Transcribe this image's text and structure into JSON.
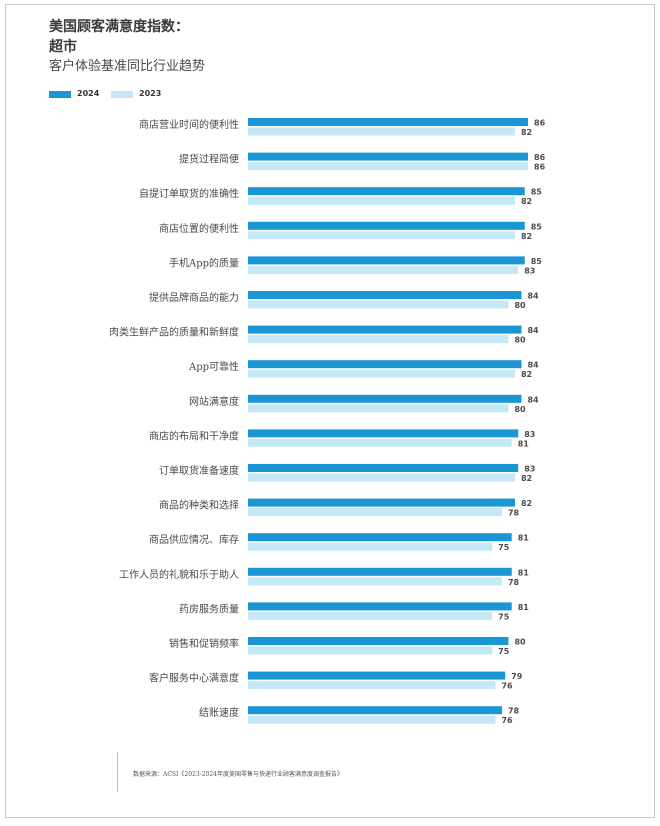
{
  "header": {
    "title_line1": "美国顾客满意度指数：",
    "title_line2": "超市",
    "subtitle": "客户体验基准同比行业趋势"
  },
  "legend": [
    {
      "label": "2024",
      "color": "#1a96d4"
    },
    {
      "label": "2023",
      "color": "#c5e8f6"
    }
  ],
  "chart_data": {
    "type": "bar",
    "orientation": "horizontal",
    "categories": [
      "商店营业时间的便利性",
      "提货过程简便",
      "自提订单取货的准确性",
      "商店位置的便利性",
      "手机App的质量",
      "提供品牌商品的能力",
      "肉类生鲜产品的质量和新鲜度",
      "App可靠性",
      "网站满意度",
      "商店的布局和干净度",
      "订单取货准备速度",
      "商品的种类和选择",
      "商品供应情况、库存",
      "工作人员的礼貌和乐于助人",
      "药房服务质量",
      "销售和促销频率",
      "客户服务中心满意度",
      "结账速度"
    ],
    "series": [
      {
        "name": "2024",
        "color": "#1a96d4",
        "values": [
          86,
          86,
          85,
          85,
          85,
          84,
          84,
          84,
          84,
          83,
          83,
          82,
          81,
          81,
          81,
          80,
          79,
          78
        ]
      },
      {
        "name": "2023",
        "color": "#c5e8f6",
        "values": [
          82,
          86,
          82,
          82,
          83,
          80,
          80,
          82,
          80,
          81,
          82,
          78,
          75,
          78,
          75,
          75,
          76,
          76
        ]
      }
    ]
  },
  "footer": {
    "source": "数据来源：ACSI《2023-2024年度美国零售与快递行业顾客满意度调查报告》"
  }
}
